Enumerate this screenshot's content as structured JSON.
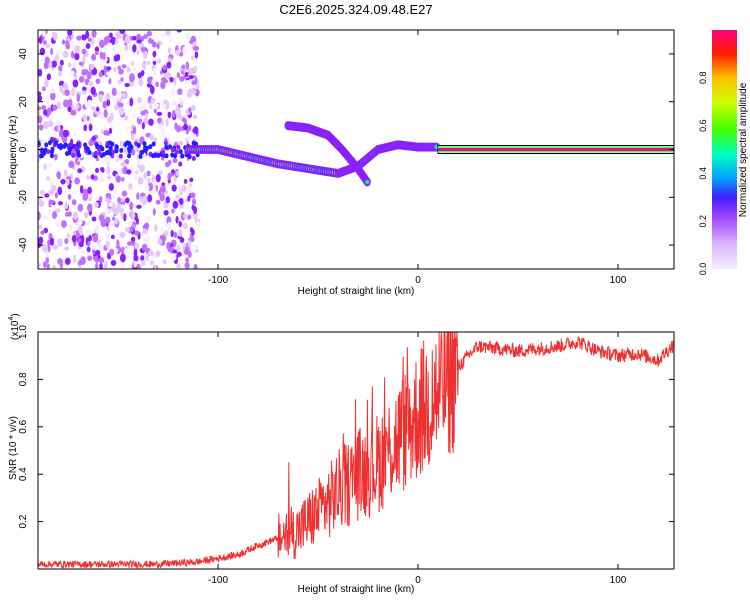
{
  "title": "C2E6.2025.324.09.48.E27",
  "chart_data": [
    {
      "type": "heatmap",
      "xlabel": "Height of straight line (km)",
      "ylabel": "Frequency (Hz)",
      "xlim": [
        -190,
        128
      ],
      "ylim": [
        -50,
        50
      ],
      "xticks": [
        -100,
        0,
        100
      ],
      "yticks": [
        -40,
        -20,
        0,
        20,
        40
      ],
      "colorbar": {
        "label": "Normalized spectral amplitude",
        "range": [
          0,
          1
        ],
        "ticks": [
          "0.0",
          "0.2",
          "0.4",
          "0.6",
          "0.8"
        ],
        "colors": [
          "#f4f0ff",
          "#e6c8ff",
          "#c070ff",
          "#8a20ff",
          "#2020ff",
          "#00c8ff",
          "#00ff80",
          "#90ff00",
          "#ffff00",
          "#ff8000",
          "#ff0000",
          "#ff0080"
        ]
      },
      "features": [
        {
          "name": "noise",
          "x_range": [
            -190,
            -110
          ],
          "freq_range": [
            -50,
            50
          ],
          "amplitude": 0.2
        },
        {
          "name": "carrier",
          "x_range": [
            10,
            128
          ],
          "freq": 0,
          "amplitude": 1.0
        },
        {
          "name": "meteor-trace",
          "x": [
            -115,
            -100,
            -85,
            -70,
            -55,
            -40,
            -30,
            -20,
            -10,
            0,
            10
          ],
          "freq": [
            0,
            0,
            -3,
            -6,
            -8,
            -10,
            -7,
            0,
            2,
            1,
            1
          ],
          "amplitude": 0.55
        },
        {
          "name": "upper-branch",
          "x": [
            -65,
            -55,
            -45,
            -38,
            -30,
            -25
          ],
          "freq": [
            10,
            9,
            6,
            0,
            -8,
            -14
          ],
          "amplitude": 0.45
        }
      ]
    },
    {
      "type": "line",
      "xlabel": "Height of straight line (km)",
      "ylabel": "SNR (10 * v/v)",
      "scale_label": "(x10",
      "scale_exp": "4",
      "scale_close": ")",
      "xlim": [
        -190,
        128
      ],
      "ylim": [
        0,
        1.0
      ],
      "xticks": [
        -100,
        0,
        100
      ],
      "yticks": [
        "0.2",
        "0.4",
        "0.6",
        "0.8",
        "1.0"
      ],
      "color": "#f03030",
      "series": [
        {
          "name": "SNR",
          "x": [
            -190,
            -150,
            -130,
            -110,
            -90,
            -80,
            -70,
            -60,
            -55,
            -50,
            -45,
            -40,
            -35,
            -30,
            -25,
            -20,
            -15,
            -10,
            -5,
            0,
            5,
            10,
            15,
            20,
            25,
            30,
            40,
            50,
            60,
            70,
            80,
            90,
            100,
            110,
            120,
            128
          ],
          "y": [
            0.02,
            0.02,
            0.02,
            0.03,
            0.06,
            0.1,
            0.13,
            0.16,
            0.2,
            0.24,
            0.28,
            0.33,
            0.36,
            0.4,
            0.42,
            0.45,
            0.5,
            0.55,
            0.6,
            0.65,
            0.7,
            0.75,
            0.8,
            0.85,
            0.9,
            0.94,
            0.93,
            0.92,
            0.93,
            0.94,
            0.96,
            0.92,
            0.9,
            0.91,
            0.88,
            0.95
          ]
        }
      ]
    }
  ]
}
